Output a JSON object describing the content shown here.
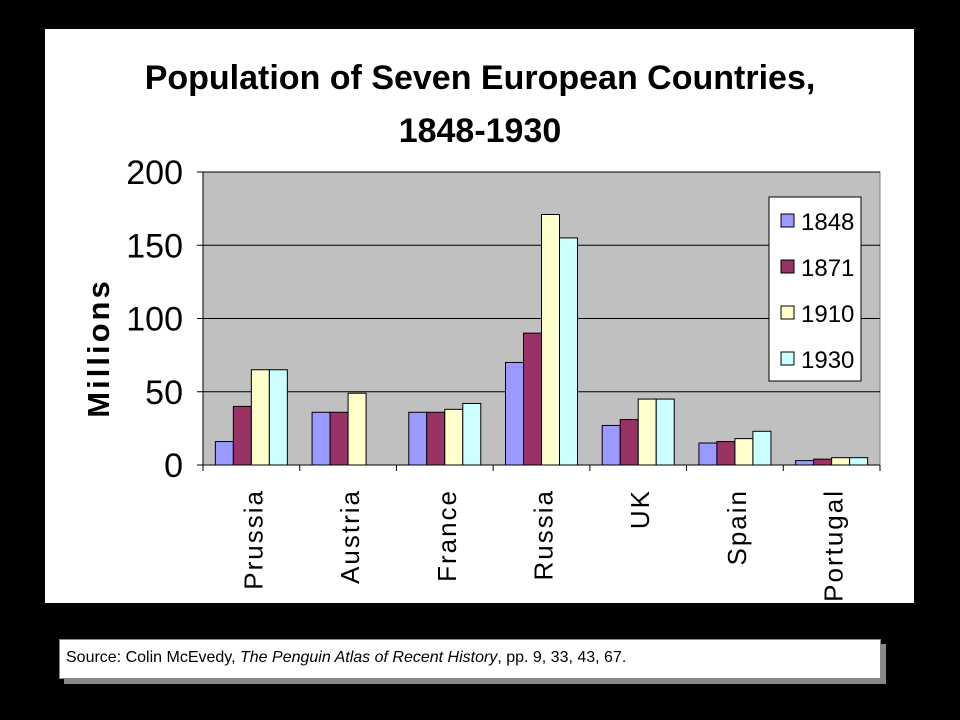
{
  "chart_data": {
    "type": "bar",
    "title": "Population of Seven European Countries,",
    "title_line2": "1848-1930",
    "ylabel": "Millions",
    "xlabel": "",
    "ylim": [
      0,
      200
    ],
    "yticks": [
      0,
      50,
      100,
      150,
      200
    ],
    "grid": true,
    "legend_position": "top-right",
    "categories": [
      "Prussia",
      "Austria",
      "France",
      "Russia",
      "UK",
      "Spain",
      "Portugal"
    ],
    "series": [
      {
        "name": "1848",
        "color": "#9999FF",
        "values": [
          16,
          36,
          36,
          70,
          27,
          15,
          3
        ]
      },
      {
        "name": "1871",
        "color": "#993366",
        "values": [
          40,
          36,
          36,
          90,
          31,
          16,
          4
        ]
      },
      {
        "name": "1910",
        "color": "#FFFFCC",
        "values": [
          65,
          49,
          38,
          171,
          45,
          18,
          5
        ]
      },
      {
        "name": "1930",
        "color": "#CCFFFF",
        "values": [
          65,
          null,
          42,
          155,
          45,
          23,
          5
        ]
      }
    ],
    "plot_background": "#C0C0C0"
  },
  "source": {
    "prefix": "Source:  Colin McEvedy, ",
    "book": "The Penguin Atlas of Recent History",
    "suffix": ", pp. 9, 33, 43, 67."
  }
}
